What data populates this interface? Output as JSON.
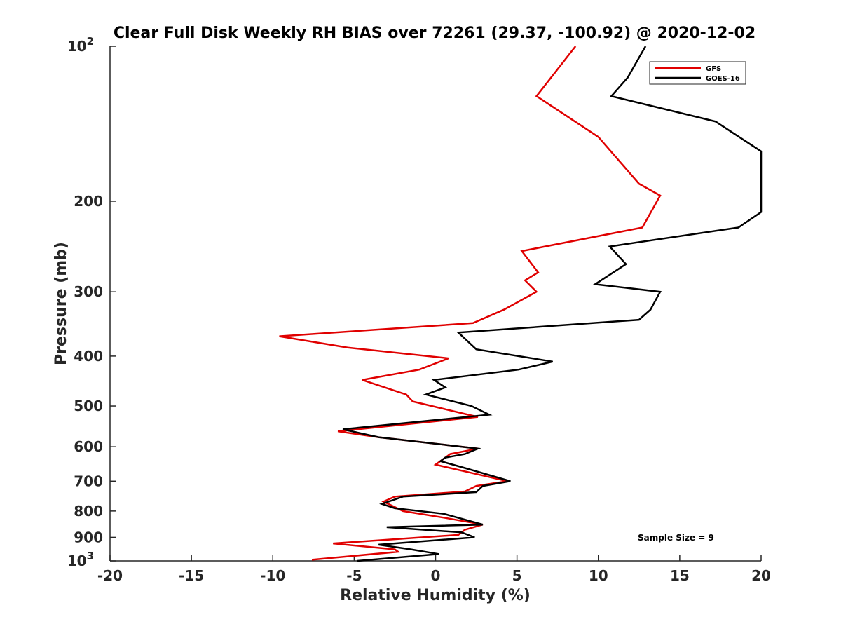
{
  "chart_data": {
    "type": "line",
    "title": "Clear Full Disk Weekly RH BIAS over 72261 (29.37, -100.92) @ 2020-12-02",
    "xlabel": "Relative Humidity (%)",
    "ylabel": "Pressure (mb)",
    "xlim": [
      -20,
      20
    ],
    "ylim": [
      100,
      1000
    ],
    "y_scale": "log",
    "y_direction": "reversed",
    "x_ticks": [
      "-20",
      "-15",
      "-10",
      "-5",
      "0",
      "5",
      "10",
      "15",
      "20"
    ],
    "y_ticks": [
      {
        "value": 100,
        "label": "10",
        "sup": "2"
      },
      {
        "value": 200,
        "label": "200",
        "sup": ""
      },
      {
        "value": 300,
        "label": "300",
        "sup": ""
      },
      {
        "value": 400,
        "label": "400",
        "sup": ""
      },
      {
        "value": 500,
        "label": "500",
        "sup": ""
      },
      {
        "value": 600,
        "label": "600",
        "sup": ""
      },
      {
        "value": 700,
        "label": "700",
        "sup": ""
      },
      {
        "value": 800,
        "label": "800",
        "sup": ""
      },
      {
        "value": 900,
        "label": "900",
        "sup": ""
      },
      {
        "value": 1000,
        "label": "10",
        "sup": "3"
      }
    ],
    "grid": false,
    "legend_position": "top-right",
    "annotation": "Sample Size = 9",
    "series": [
      {
        "name": "GFS",
        "color": "#e00000",
        "points": [
          [
            8.6,
            100
          ],
          [
            6.2,
            125
          ],
          [
            10.0,
            150
          ],
          [
            12.5,
            185
          ],
          [
            13.8,
            195
          ],
          [
            12.7,
            225
          ],
          [
            5.3,
            250
          ],
          [
            6.3,
            275
          ],
          [
            5.5,
            285
          ],
          [
            6.2,
            300
          ],
          [
            4.2,
            325
          ],
          [
            2.3,
            345
          ],
          [
            -9.6,
            366
          ],
          [
            -5.4,
            385
          ],
          [
            0.8,
            404
          ],
          [
            -1.0,
            425
          ],
          [
            -4.5,
            445
          ],
          [
            -1.8,
            475
          ],
          [
            -1.4,
            490
          ],
          [
            2.0,
            520
          ],
          [
            2.6,
            525
          ],
          [
            -6.0,
            560
          ],
          [
            -3.5,
            575
          ],
          [
            2.6,
            605
          ],
          [
            0.9,
            620
          ],
          [
            0.0,
            650
          ],
          [
            1.8,
            670
          ],
          [
            4.4,
            700
          ],
          [
            2.5,
            715
          ],
          [
            1.8,
            733
          ],
          [
            -2.5,
            750
          ],
          [
            -3.2,
            767
          ],
          [
            -2.0,
            800
          ],
          [
            0.6,
            825
          ],
          [
            2.9,
            850
          ],
          [
            1.8,
            870
          ],
          [
            1.4,
            890
          ],
          [
            -6.3,
            925
          ],
          [
            -2.5,
            950
          ],
          [
            -2.3,
            960
          ],
          [
            -7.6,
            995
          ]
        ]
      },
      {
        "name": "GOES-16",
        "color": "#000000",
        "points": [
          [
            12.9,
            100
          ],
          [
            11.8,
            115
          ],
          [
            10.8,
            125
          ],
          [
            17.2,
            140
          ],
          [
            20.0,
            160
          ],
          [
            20.0,
            210
          ],
          [
            18.6,
            225
          ],
          [
            10.7,
            245
          ],
          [
            11.7,
            265
          ],
          [
            9.8,
            290
          ],
          [
            13.8,
            300
          ],
          [
            13.2,
            325
          ],
          [
            12.5,
            340
          ],
          [
            1.4,
            360
          ],
          [
            2.5,
            388
          ],
          [
            7.2,
            410
          ],
          [
            5.1,
            425
          ],
          [
            -0.1,
            445
          ],
          [
            0.6,
            460
          ],
          [
            -0.6,
            475
          ],
          [
            2.2,
            500
          ],
          [
            3.3,
            520
          ],
          [
            -5.7,
            555
          ],
          [
            -3.5,
            575
          ],
          [
            2.6,
            605
          ],
          [
            1.8,
            620
          ],
          [
            0.6,
            630
          ],
          [
            0.3,
            640
          ],
          [
            1.8,
            660
          ],
          [
            4.6,
            700
          ],
          [
            2.9,
            715
          ],
          [
            2.5,
            735
          ],
          [
            -2.0,
            750
          ],
          [
            -3.3,
            775
          ],
          [
            -2.5,
            790
          ],
          [
            0.5,
            810
          ],
          [
            2.9,
            850
          ],
          [
            -3.0,
            860
          ],
          [
            1.6,
            880
          ],
          [
            2.4,
            900
          ],
          [
            -3.5,
            930
          ],
          [
            -1.5,
            950
          ],
          [
            0.2,
            970
          ],
          [
            -4.8,
            1000
          ]
        ]
      }
    ]
  }
}
